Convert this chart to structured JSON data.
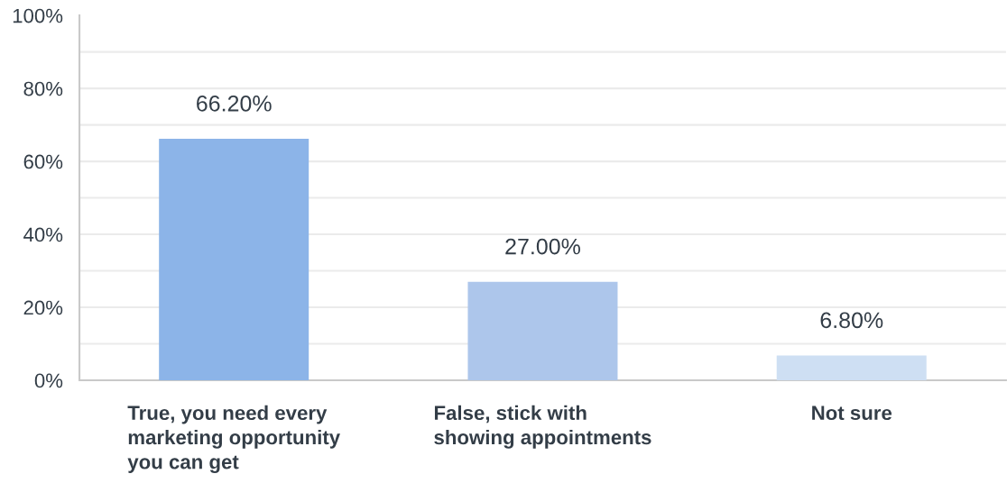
{
  "chart_data": {
    "type": "bar",
    "categories": [
      "True, you need every marketing opportunity you can get",
      "False, stick with showing appointments",
      "Not sure"
    ],
    "values": [
      66.2,
      27.0,
      6.8
    ],
    "colors": [
      "#8cb4e8",
      "#adc6eb",
      "#cedff3"
    ],
    "value_labels": [
      "66.20%",
      "27.00%",
      "6.80%"
    ],
    "ylim": [
      0,
      100
    ],
    "yticks": [
      {
        "value": 0,
        "label": "0%"
      },
      {
        "value": 10,
        "label": null
      },
      {
        "value": 20,
        "label": "20%"
      },
      {
        "value": 30,
        "label": null
      },
      {
        "value": 40,
        "label": "40%"
      },
      {
        "value": 50,
        "label": null
      },
      {
        "value": 60,
        "label": "60%"
      },
      {
        "value": 70,
        "label": null
      },
      {
        "value": 80,
        "label": "80%"
      },
      {
        "value": 90,
        "label": null
      },
      {
        "value": 100,
        "label": "100%"
      }
    ],
    "grid": "y"
  }
}
